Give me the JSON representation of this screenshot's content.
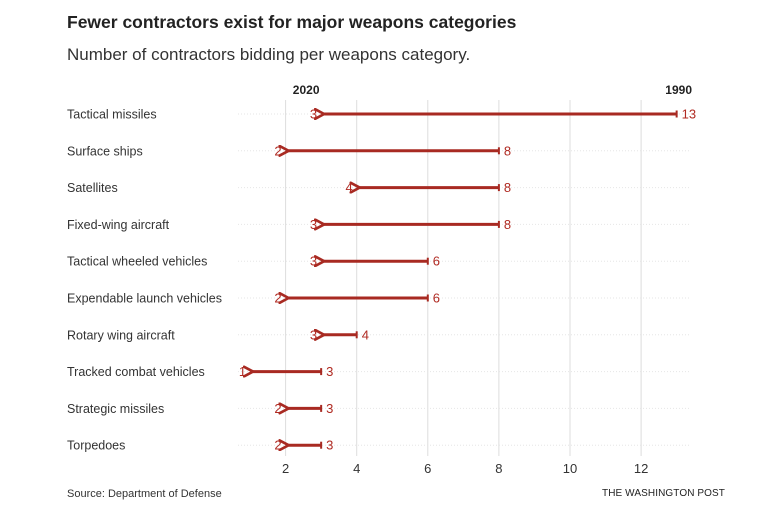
{
  "title": "Fewer contractors exist for major weapons categories",
  "subtitle": "Number of contractors bidding per weapons category.",
  "source": "Source: Department of Defense",
  "credit": "THE WASHINGTON POST",
  "colors": {
    "arrow": "#a82a22",
    "label": "#b02a22",
    "grid": "#dddddd"
  },
  "chart_data": {
    "type": "arrow",
    "series": [
      {
        "name": "2020",
        "values": [
          3,
          2,
          4,
          3,
          3,
          2,
          3,
          1,
          2,
          2
        ]
      },
      {
        "name": "1990",
        "values": [
          13,
          8,
          8,
          8,
          6,
          6,
          4,
          3,
          3,
          3
        ]
      }
    ],
    "categories": [
      "Tactical missiles",
      "Surface ships",
      "Satellites",
      "Fixed-wing aircraft",
      "Tactical wheeled vehicles",
      "Expendable launch vehicles",
      "Rotary wing aircraft",
      "Tracked combat vehicles",
      "Strategic missiles",
      "Torpedoes"
    ],
    "x_ticks": [
      2,
      4,
      6,
      8,
      10,
      12
    ],
    "xlim": [
      0.85,
      13.5
    ],
    "grid": true,
    "xlabel": "",
    "ylabel": ""
  }
}
